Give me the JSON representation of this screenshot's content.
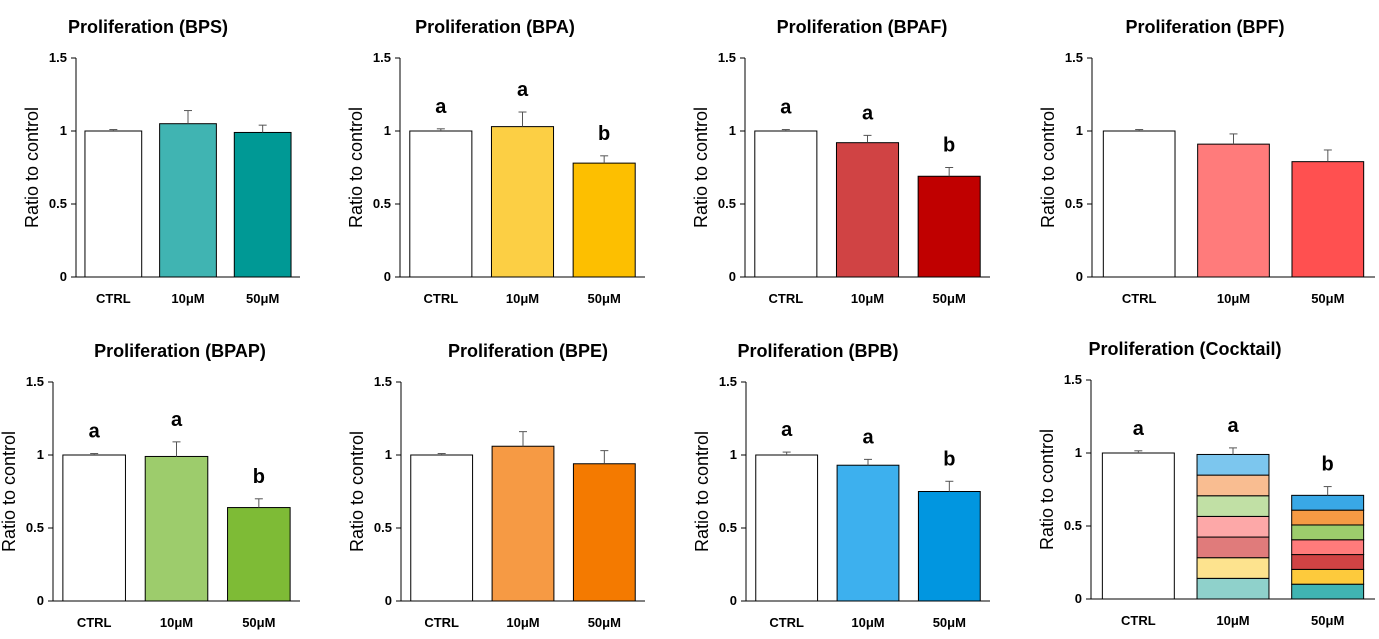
{
  "chart_data": [
    {
      "type": "bar",
      "title": "Proliferation (BPS)",
      "ylabel": "Ratio to control",
      "ylim": [
        0,
        1.5
      ],
      "yticks": [
        "0",
        "0.5",
        "1",
        "1.5"
      ],
      "categories": [
        "CTRL",
        "10μM",
        "50μM"
      ],
      "values": [
        1.0,
        1.05,
        0.99
      ],
      "errors": [
        0.01,
        0.09,
        0.05
      ],
      "colors": [
        "#ffffff",
        "#40b4b2",
        "#009995"
      ],
      "labels": [
        "",
        "",
        ""
      ]
    },
    {
      "type": "bar",
      "title": "Proliferation (BPA)",
      "ylabel": "Ratio to control",
      "ylim": [
        0,
        1.5
      ],
      "yticks": [
        "0",
        "0.5",
        "1",
        "1.5"
      ],
      "categories": [
        "CTRL",
        "10μM",
        "50μM"
      ],
      "values": [
        1.0,
        1.03,
        0.78
      ],
      "errors": [
        0.015,
        0.1,
        0.05
      ],
      "colors": [
        "#ffffff",
        "#fccf44",
        "#fdbf00"
      ],
      "labels": [
        "a",
        "a",
        "b"
      ]
    },
    {
      "type": "bar",
      "title": "Proliferation (BPAF)",
      "ylabel": "Ratio to control",
      "ylim": [
        0,
        1.5
      ],
      "yticks": [
        "0",
        "0.5",
        "1",
        "1.5"
      ],
      "categories": [
        "CTRL",
        "10μM",
        "50μM"
      ],
      "values": [
        1.0,
        0.92,
        0.69
      ],
      "errors": [
        0.01,
        0.05,
        0.06
      ],
      "colors": [
        "#ffffff",
        "#d04344",
        "#c00000"
      ],
      "labels": [
        "a",
        "a",
        "b"
      ]
    },
    {
      "type": "bar",
      "title": "Proliferation (BPF)",
      "ylabel": "Ratio to control",
      "ylim": [
        0,
        1.5
      ],
      "yticks": [
        "0",
        "0.5",
        "1",
        "1.5"
      ],
      "categories": [
        "CTRL",
        "10μM",
        "50μM"
      ],
      "values": [
        1.0,
        0.91,
        0.79
      ],
      "errors": [
        0.01,
        0.07,
        0.08
      ],
      "colors": [
        "#ffffff",
        "#ff7b7b",
        "#ff5050"
      ],
      "labels": [
        "",
        "",
        ""
      ]
    },
    {
      "type": "bar",
      "title": "Proliferation (BPAP)",
      "ylabel": "Ratio to control",
      "ylim": [
        0,
        1.5
      ],
      "yticks": [
        "0",
        "0.5",
        "1",
        "1.5"
      ],
      "categories": [
        "CTRL",
        "10μM",
        "50μM"
      ],
      "values": [
        1.0,
        0.99,
        0.64
      ],
      "errors": [
        0.01,
        0.1,
        0.06
      ],
      "colors": [
        "#ffffff",
        "#9dcc6c",
        "#7ebb36"
      ],
      "labels": [
        "a",
        "a",
        "b"
      ]
    },
    {
      "type": "bar",
      "title": "Proliferation (BPE)",
      "ylabel": "Ratio to control",
      "ylim": [
        0,
        1.5
      ],
      "yticks": [
        "0",
        "0.5",
        "1",
        "1.5"
      ],
      "categories": [
        "CTRL",
        "10μM",
        "50μM"
      ],
      "values": [
        1.0,
        1.06,
        0.94
      ],
      "errors": [
        0.01,
        0.1,
        0.09
      ],
      "colors": [
        "#ffffff",
        "#f69a44",
        "#f47a00"
      ],
      "labels": [
        "",
        "",
        ""
      ]
    },
    {
      "type": "bar",
      "title": "Proliferation (BPB)",
      "ylabel": "Ratio to control",
      "ylim": [
        0,
        1.5
      ],
      "yticks": [
        "0",
        "0.5",
        "1",
        "1.5"
      ],
      "categories": [
        "CTRL",
        "10μM",
        "50μM"
      ],
      "values": [
        1.0,
        0.93,
        0.75
      ],
      "errors": [
        0.02,
        0.04,
        0.07
      ],
      "colors": [
        "#ffffff",
        "#3db0ee",
        "#0196e0"
      ],
      "labels": [
        "a",
        "a",
        "b"
      ]
    },
    {
      "type": "bar",
      "title": "Proliferation (Cocktail)",
      "ylabel": "Ratio to control",
      "ylim": [
        0,
        1.5
      ],
      "yticks": [
        "0",
        "0.5",
        "1",
        "1.5"
      ],
      "categories": [
        "CTRL",
        "10μM",
        "50μM"
      ],
      "values": [
        1.0,
        0.99,
        0.71
      ],
      "errors": [
        0.015,
        0.045,
        0.06
      ],
      "colors": [
        "#ffffff",
        "#7cc6ee",
        "#39a8e6"
      ],
      "labels": [
        "a",
        "a",
        "b"
      ],
      "stack_colors": [
        "#8fd1cb",
        "#fde38e",
        "#e07b7b",
        "#fda8a8",
        "#c1e0a5",
        "#f9bd91",
        "#7cc6ee"
      ],
      "stack_colors_50": [
        "#40b4b2",
        "#fdca3c",
        "#d04344",
        "#ff7b7b",
        "#9dcc6c",
        "#f69a44",
        "#39a8e6"
      ]
    }
  ]
}
